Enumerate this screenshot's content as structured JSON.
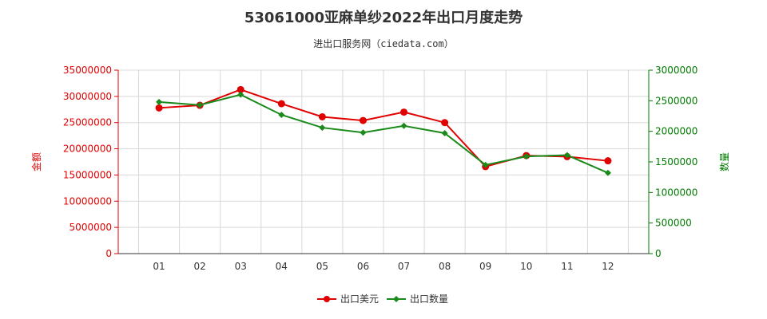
{
  "chart_data": {
    "type": "line",
    "title": "53061000亚麻单纱2022年出口月度走势",
    "subtitle": "进出口服务网（ciedata.com）",
    "x": [
      "01",
      "02",
      "03",
      "04",
      "05",
      "06",
      "07",
      "08",
      "09",
      "10",
      "11",
      "12"
    ],
    "ylabel": "金额",
    "y2label": "数量",
    "ylim": [
      0,
      35000000
    ],
    "y2lim": [
      0,
      3000000
    ],
    "yticks": [
      "0",
      "5000000",
      "10000000",
      "15000000",
      "20000000",
      "25000000",
      "30000000",
      "35000000"
    ],
    "y2ticks": [
      "0",
      "500000",
      "1000000",
      "1500000",
      "2000000",
      "2500000",
      "3000000"
    ],
    "grid": true,
    "legend": "bottom",
    "series": [
      {
        "name": "出口美元",
        "axis": "left",
        "color": "#e00000",
        "values": [
          27800000,
          28300000,
          31300000,
          28600000,
          26100000,
          25400000,
          27000000,
          25000000,
          16600000,
          18700000,
          18500000,
          17700000
        ]
      },
      {
        "name": "出口数量",
        "axis": "right",
        "color": "#1a8a1a",
        "values": [
          2480000,
          2430000,
          2600000,
          2270000,
          2060000,
          1980000,
          2090000,
          1970000,
          1450000,
          1590000,
          1610000,
          1320000
        ]
      }
    ]
  }
}
